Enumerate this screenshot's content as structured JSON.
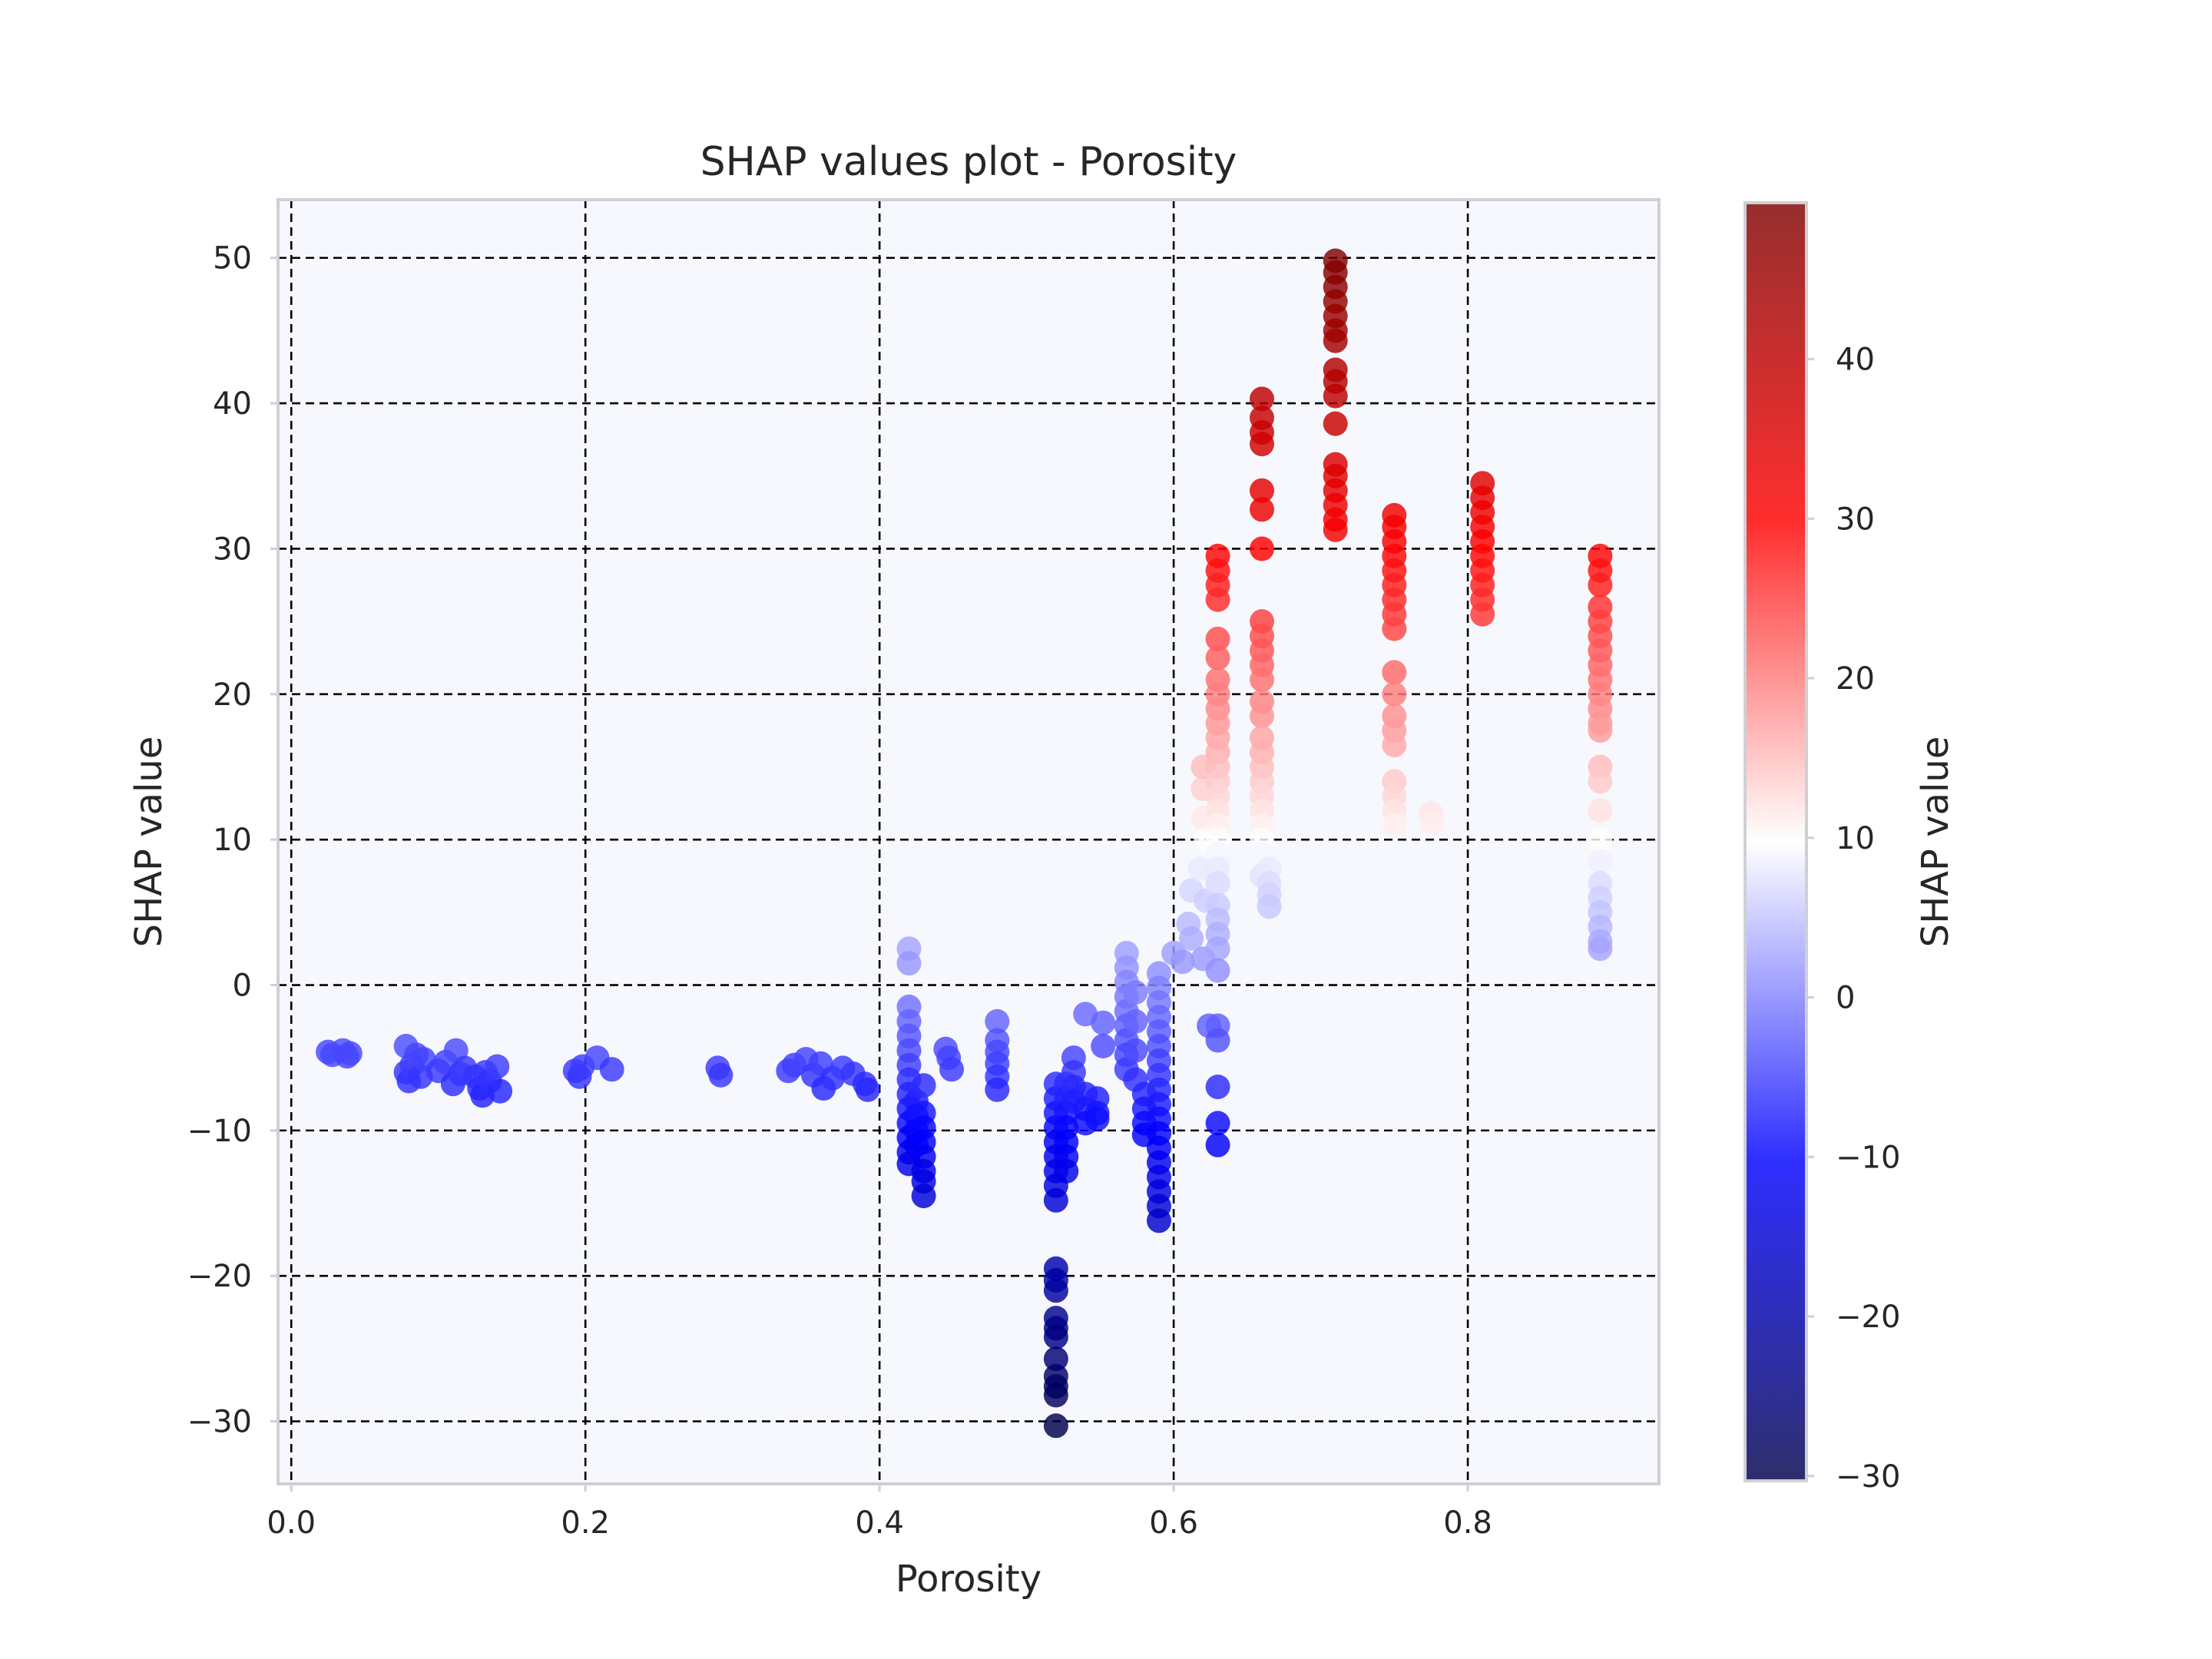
{
  "chart_data": {
    "type": "scatter",
    "title": "SHAP values plot - Porosity",
    "xlabel": "Porosity",
    "ylabel": "SHAP value",
    "xlim": [
      -0.009,
      0.93
    ],
    "ylim": [
      -34.3,
      54.0
    ],
    "xticks": [
      0.0,
      0.2,
      0.4,
      0.6,
      0.8
    ],
    "xtick_labels": [
      "0.0",
      "0.2",
      "0.4",
      "0.6",
      "0.8"
    ],
    "yticks": [
      -30,
      -20,
      -10,
      0,
      10,
      20,
      30,
      40,
      50
    ],
    "ytick_labels": [
      "−30",
      "−20",
      "−10",
      "0",
      "10",
      "20",
      "30",
      "40",
      "50"
    ],
    "grid": true,
    "colormap": "seismic",
    "colorbar": {
      "label": "SHAP value",
      "range": [
        -30.3,
        49.8
      ],
      "ticks": [
        -30,
        -20,
        -10,
        0,
        10,
        20,
        30,
        40
      ],
      "tick_labels": [
        "−30",
        "−20",
        "−10",
        "0",
        "10",
        "20",
        "30",
        "40"
      ]
    },
    "points": [
      [
        0.025,
        -4.6
      ],
      [
        0.028,
        -4.8
      ],
      [
        0.035,
        -4.5
      ],
      [
        0.038,
        -4.9
      ],
      [
        0.04,
        -4.7
      ],
      [
        0.078,
        -4.2
      ],
      [
        0.078,
        -6.0
      ],
      [
        0.08,
        -6.6
      ],
      [
        0.082,
        -5.5
      ],
      [
        0.085,
        -4.8
      ],
      [
        0.088,
        -6.3
      ],
      [
        0.09,
        -5.1
      ],
      [
        0.1,
        -5.9
      ],
      [
        0.105,
        -5.3
      ],
      [
        0.11,
        -6.8
      ],
      [
        0.112,
        -4.5
      ],
      [
        0.115,
        -6.1
      ],
      [
        0.118,
        -5.7
      ],
      [
        0.125,
        -6.3
      ],
      [
        0.128,
        -7.1
      ],
      [
        0.13,
        -7.6
      ],
      [
        0.132,
        -6.0
      ],
      [
        0.135,
        -6.6
      ],
      [
        0.14,
        -5.6
      ],
      [
        0.142,
        -7.3
      ],
      [
        0.193,
        -5.9
      ],
      [
        0.196,
        -6.3
      ],
      [
        0.198,
        -5.6
      ],
      [
        0.208,
        -5.0
      ],
      [
        0.218,
        -5.8
      ],
      [
        0.29,
        -5.7
      ],
      [
        0.292,
        -6.2
      ],
      [
        0.338,
        -5.9
      ],
      [
        0.342,
        -5.5
      ],
      [
        0.35,
        -5.1
      ],
      [
        0.355,
        -6.2
      ],
      [
        0.36,
        -5.4
      ],
      [
        0.362,
        -7.1
      ],
      [
        0.368,
        -6.4
      ],
      [
        0.375,
        -5.7
      ],
      [
        0.382,
        -6.1
      ],
      [
        0.39,
        -6.8
      ],
      [
        0.392,
        -7.2
      ],
      [
        0.42,
        2.5
      ],
      [
        0.42,
        1.5
      ],
      [
        0.42,
        -1.5
      ],
      [
        0.42,
        -2.5
      ],
      [
        0.42,
        -3.5
      ],
      [
        0.42,
        -4.5
      ],
      [
        0.42,
        -5.5
      ],
      [
        0.42,
        -6.5
      ],
      [
        0.42,
        -7.5
      ],
      [
        0.42,
        -8.5
      ],
      [
        0.42,
        -9.5
      ],
      [
        0.42,
        -10.5
      ],
      [
        0.42,
        -11.5
      ],
      [
        0.42,
        -12.3
      ],
      [
        0.425,
        -8.0
      ],
      [
        0.425,
        -9.0
      ],
      [
        0.425,
        -10.0
      ],
      [
        0.425,
        -11.0
      ],
      [
        0.43,
        -6.9
      ],
      [
        0.43,
        -8.8
      ],
      [
        0.43,
        -9.8
      ],
      [
        0.43,
        -10.8
      ],
      [
        0.43,
        -11.8
      ],
      [
        0.43,
        -12.8
      ],
      [
        0.43,
        -13.5
      ],
      [
        0.43,
        -14.5
      ],
      [
        0.445,
        -4.4
      ],
      [
        0.447,
        -5.0
      ],
      [
        0.449,
        -5.8
      ],
      [
        0.48,
        -2.5
      ],
      [
        0.48,
        -3.8
      ],
      [
        0.48,
        -4.6
      ],
      [
        0.48,
        -5.4
      ],
      [
        0.48,
        -6.3
      ],
      [
        0.48,
        -7.2
      ],
      [
        0.52,
        -6.8
      ],
      [
        0.52,
        -7.8
      ],
      [
        0.52,
        -8.8
      ],
      [
        0.52,
        -9.8
      ],
      [
        0.52,
        -10.8
      ],
      [
        0.52,
        -11.8
      ],
      [
        0.52,
        -12.8
      ],
      [
        0.52,
        -13.8
      ],
      [
        0.52,
        -14.8
      ],
      [
        0.52,
        -19.5
      ],
      [
        0.52,
        -20.3
      ],
      [
        0.52,
        -21.0
      ],
      [
        0.52,
        -22.9
      ],
      [
        0.52,
        -23.6
      ],
      [
        0.52,
        -24.2
      ],
      [
        0.52,
        -25.7
      ],
      [
        0.52,
        -26.9
      ],
      [
        0.52,
        -27.6
      ],
      [
        0.52,
        -28.2
      ],
      [
        0.52,
        -30.3
      ],
      [
        0.527,
        -6.8
      ],
      [
        0.527,
        -7.8
      ],
      [
        0.527,
        -8.8
      ],
      [
        0.527,
        -9.8
      ],
      [
        0.527,
        -10.8
      ],
      [
        0.527,
        -11.8
      ],
      [
        0.527,
        -12.8
      ],
      [
        0.532,
        -5.0
      ],
      [
        0.532,
        -6.0
      ],
      [
        0.532,
        -7.0
      ],
      [
        0.532,
        -8.0
      ],
      [
        0.54,
        -2.0
      ],
      [
        0.54,
        -7.5
      ],
      [
        0.54,
        -8.5
      ],
      [
        0.54,
        -9.5
      ],
      [
        0.548,
        -7.8
      ],
      [
        0.548,
        -8.8
      ],
      [
        0.548,
        -9.2
      ],
      [
        0.552,
        -2.6
      ],
      [
        0.552,
        -4.2
      ],
      [
        0.568,
        2.2
      ],
      [
        0.568,
        1.2
      ],
      [
        0.568,
        0.2
      ],
      [
        0.568,
        -0.8
      ],
      [
        0.568,
        -1.8
      ],
      [
        0.568,
        -2.8
      ],
      [
        0.568,
        -3.8
      ],
      [
        0.568,
        -4.8
      ],
      [
        0.568,
        -5.8
      ],
      [
        0.574,
        -0.5
      ],
      [
        0.574,
        -2.5
      ],
      [
        0.574,
        -4.5
      ],
      [
        0.574,
        -6.5
      ],
      [
        0.58,
        -7.5
      ],
      [
        0.58,
        -8.5
      ],
      [
        0.58,
        -9.5
      ],
      [
        0.58,
        -10.3
      ],
      [
        0.59,
        0.8
      ],
      [
        0.59,
        -0.2
      ],
      [
        0.59,
        -1.2
      ],
      [
        0.59,
        -2.2
      ],
      [
        0.59,
        -3.2
      ],
      [
        0.59,
        -4.2
      ],
      [
        0.59,
        -5.2
      ],
      [
        0.59,
        -6.2
      ],
      [
        0.59,
        -7.2
      ],
      [
        0.59,
        -8.2
      ],
      [
        0.59,
        -9.2
      ],
      [
        0.59,
        -10.2
      ],
      [
        0.59,
        -11.2
      ],
      [
        0.59,
        -12.2
      ],
      [
        0.59,
        -13.2
      ],
      [
        0.59,
        -14.2
      ],
      [
        0.59,
        -15.2
      ],
      [
        0.59,
        -16.2
      ],
      [
        0.6,
        2.2
      ],
      [
        0.606,
        1.6
      ],
      [
        0.61,
        4.2
      ],
      [
        0.612,
        3.2
      ],
      [
        0.612,
        6.5
      ],
      [
        0.618,
        8.0
      ],
      [
        0.62,
        1.8
      ],
      [
        0.62,
        13.5
      ],
      [
        0.62,
        15.0
      ],
      [
        0.62,
        11.5
      ],
      [
        0.622,
        10.0
      ],
      [
        0.622,
        5.8
      ],
      [
        0.624,
        -2.8
      ],
      [
        0.63,
        29.5
      ],
      [
        0.63,
        28.5
      ],
      [
        0.63,
        27.5
      ],
      [
        0.63,
        26.5
      ],
      [
        0.63,
        23.8
      ],
      [
        0.63,
        22.5
      ],
      [
        0.63,
        21.0
      ],
      [
        0.63,
        20.0
      ],
      [
        0.63,
        19.0
      ],
      [
        0.63,
        18.0
      ],
      [
        0.63,
        17.0
      ],
      [
        0.63,
        16.0
      ],
      [
        0.63,
        15.0
      ],
      [
        0.63,
        14.0
      ],
      [
        0.63,
        13.0
      ],
      [
        0.63,
        12.0
      ],
      [
        0.63,
        11.0
      ],
      [
        0.63,
        10.0
      ],
      [
        0.63,
        9.0
      ],
      [
        0.63,
        8.0
      ],
      [
        0.63,
        7.0
      ],
      [
        0.63,
        5.5
      ],
      [
        0.63,
        4.5
      ],
      [
        0.63,
        3.5
      ],
      [
        0.63,
        2.5
      ],
      [
        0.63,
        1.0
      ],
      [
        0.63,
        -2.8
      ],
      [
        0.63,
        -3.8
      ],
      [
        0.63,
        -7.0
      ],
      [
        0.63,
        -9.5
      ],
      [
        0.63,
        -11.0
      ],
      [
        0.66,
        40.3
      ],
      [
        0.66,
        39.0
      ],
      [
        0.66,
        38.0
      ],
      [
        0.66,
        37.2
      ],
      [
        0.66,
        34.0
      ],
      [
        0.66,
        32.7
      ],
      [
        0.66,
        30.0
      ],
      [
        0.66,
        25.0
      ],
      [
        0.66,
        24.0
      ],
      [
        0.66,
        23.0
      ],
      [
        0.66,
        22.0
      ],
      [
        0.66,
        21.0
      ],
      [
        0.66,
        19.5
      ],
      [
        0.66,
        18.5
      ],
      [
        0.66,
        17.0
      ],
      [
        0.66,
        16.0
      ],
      [
        0.66,
        15.0
      ],
      [
        0.66,
        14.0
      ],
      [
        0.66,
        13.0
      ],
      [
        0.66,
        12.0
      ],
      [
        0.66,
        11.0
      ],
      [
        0.66,
        10.0
      ],
      [
        0.66,
        9.0
      ],
      [
        0.66,
        7.5
      ],
      [
        0.665,
        8.0
      ],
      [
        0.665,
        7.0
      ],
      [
        0.665,
        6.2
      ],
      [
        0.665,
        5.4
      ],
      [
        0.71,
        49.8
      ],
      [
        0.71,
        49.0
      ],
      [
        0.71,
        48.0
      ],
      [
        0.71,
        47.0
      ],
      [
        0.71,
        46.0
      ],
      [
        0.71,
        45.0
      ],
      [
        0.71,
        44.3
      ],
      [
        0.71,
        42.3
      ],
      [
        0.71,
        41.5
      ],
      [
        0.71,
        40.5
      ],
      [
        0.71,
        38.6
      ],
      [
        0.71,
        35.8
      ],
      [
        0.71,
        35.0
      ],
      [
        0.71,
        34.0
      ],
      [
        0.71,
        33.0
      ],
      [
        0.71,
        32.0
      ],
      [
        0.71,
        31.3
      ],
      [
        0.75,
        32.3
      ],
      [
        0.75,
        31.5
      ],
      [
        0.75,
        30.5
      ],
      [
        0.75,
        29.5
      ],
      [
        0.75,
        28.5
      ],
      [
        0.75,
        27.5
      ],
      [
        0.75,
        26.5
      ],
      [
        0.75,
        25.5
      ],
      [
        0.75,
        24.5
      ],
      [
        0.75,
        21.5
      ],
      [
        0.75,
        20.0
      ],
      [
        0.75,
        18.5
      ],
      [
        0.75,
        17.5
      ],
      [
        0.75,
        16.5
      ],
      [
        0.75,
        14.0
      ],
      [
        0.75,
        13.0
      ],
      [
        0.75,
        12.0
      ],
      [
        0.75,
        11.0
      ],
      [
        0.775,
        11.8
      ],
      [
        0.776,
        11.2
      ],
      [
        0.81,
        34.5
      ],
      [
        0.81,
        33.5
      ],
      [
        0.81,
        32.5
      ],
      [
        0.81,
        31.5
      ],
      [
        0.81,
        30.5
      ],
      [
        0.81,
        29.5
      ],
      [
        0.81,
        28.5
      ],
      [
        0.81,
        27.5
      ],
      [
        0.81,
        26.5
      ],
      [
        0.81,
        25.5
      ],
      [
        0.89,
        29.5
      ],
      [
        0.89,
        28.5
      ],
      [
        0.89,
        27.5
      ],
      [
        0.89,
        26.0
      ],
      [
        0.89,
        25.0
      ],
      [
        0.89,
        24.0
      ],
      [
        0.89,
        23.0
      ],
      [
        0.89,
        22.0
      ],
      [
        0.89,
        21.0
      ],
      [
        0.89,
        20.0
      ],
      [
        0.89,
        19.0
      ],
      [
        0.89,
        18.0
      ],
      [
        0.89,
        17.5
      ],
      [
        0.89,
        15.0
      ],
      [
        0.89,
        14.0
      ],
      [
        0.89,
        12.0
      ],
      [
        0.89,
        10.0
      ],
      [
        0.89,
        8.5
      ],
      [
        0.89,
        7.0
      ],
      [
        0.89,
        6.0
      ],
      [
        0.89,
        5.0
      ],
      [
        0.89,
        4.0
      ],
      [
        0.89,
        3.0
      ],
      [
        0.89,
        2.5
      ]
    ]
  }
}
